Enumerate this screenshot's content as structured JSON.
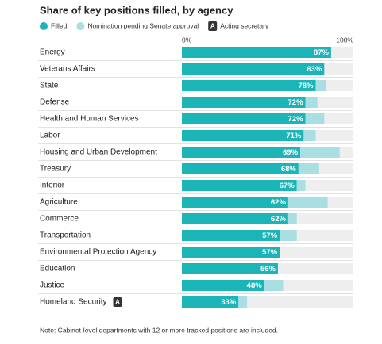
{
  "chart_data": {
    "type": "bar",
    "orientation": "horizontal",
    "stacked": true,
    "title": "Share of key positions filled, by agency",
    "categories": [
      "Energy",
      "Veterans Affairs",
      "State",
      "Defense",
      "Health and Human Services",
      "Labor",
      "Housing and Urban Development",
      "Treasury",
      "Interior",
      "Agriculture",
      "Commerce",
      "Transportation",
      "Environmental Protection Agency",
      "Education",
      "Justice",
      "Homeland Security"
    ],
    "series": [
      {
        "name": "Filled",
        "color": "#1bb5b8",
        "values": [
          87,
          83,
          78,
          72,
          72,
          71,
          69,
          68,
          67,
          62,
          62,
          57,
          57,
          56,
          48,
          33
        ],
        "value_labels": [
          "87%",
          "83%",
          "78%",
          "72%",
          "72%",
          "71%",
          "69%",
          "68%",
          "67%",
          "62%",
          "62%",
          "57%",
          "57%",
          "56%",
          "48%",
          "33%"
        ]
      },
      {
        "name": "Nomination pending Senate approval",
        "color": "#a9dfe3",
        "values": [
          0,
          0,
          6,
          7,
          11,
          7,
          23,
          12,
          5,
          23,
          5,
          10,
          0,
          0,
          11,
          5
        ]
      }
    ],
    "acting_label": "A",
    "acting_name": "Acting secretary",
    "acting": [
      false,
      false,
      false,
      false,
      false,
      false,
      false,
      false,
      false,
      false,
      false,
      false,
      false,
      false,
      false,
      true
    ],
    "track_color": "#eeeeee",
    "xlim": [
      0,
      100
    ],
    "xticks": [
      {
        "value": 0,
        "label": "0%"
      },
      {
        "value": 100,
        "label": "100%"
      }
    ],
    "note": "Note: Cabinet-level departments with 12 or more tracked positions are included."
  }
}
